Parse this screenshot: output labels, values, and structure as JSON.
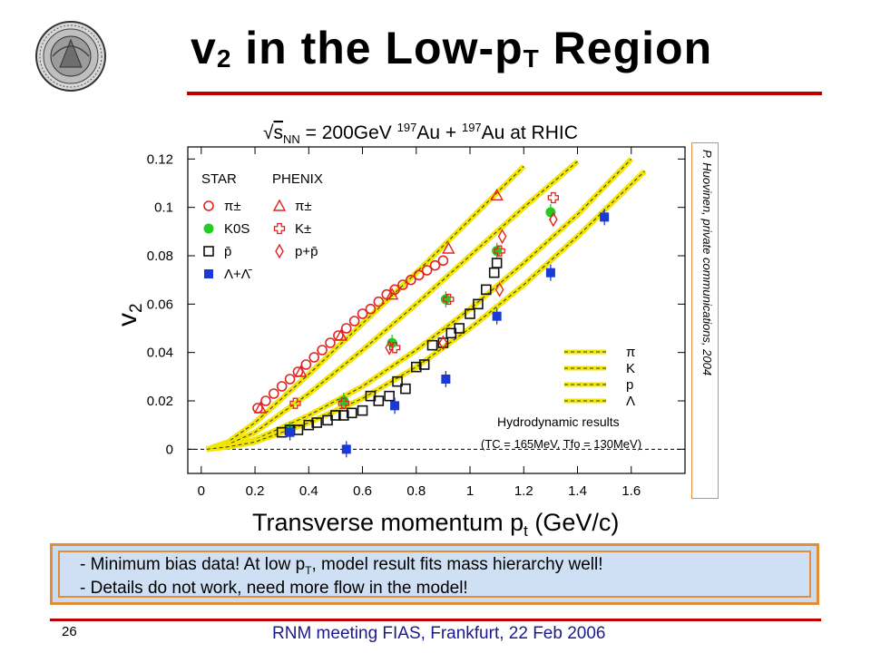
{
  "slide": {
    "title_main": "v",
    "title_sub": "2",
    "title_rest": " in the Low-p",
    "title_sub2": "T",
    "title_end": " Region",
    "page_number": "26",
    "footer": "RNM meeting FIAS, Frankfurt, 22 Feb 2006",
    "credit": "P. Huovinen, private communications, 2004",
    "accent_color": "#c00000",
    "box_border_color": "#e58c36",
    "box_fill_color": "#c9dcf2",
    "notes": {
      "line1_a": "-   Minimum bias data!     At low p",
      "line1_sub": "T",
      "line1_b": ", model result fits mass hierarchy well!",
      "line2": "-   Details do not work, need more flow in the model!"
    }
  },
  "chart_data": {
    "type": "scatter",
    "title": "√sNN = 200GeV 197Au + 197Au at RHIC",
    "title_parts": {
      "sqrt": "√",
      "s": "s",
      "nn": "NN",
      "energy": " = 200GeV ",
      "mass1": "197",
      "au1": "Au + ",
      "mass2": "197",
      "au2": "Au at RHIC"
    },
    "xlabel": "Transverse momentum p",
    "xlabel_sub": "t",
    "xlabel_unit": " (GeV/c)",
    "ylabel": "v",
    "ylabel_sub": "2",
    "xlim": [
      -0.05,
      1.8
    ],
    "ylim": [
      -0.01,
      0.125
    ],
    "xticks": [
      0,
      0.2,
      0.4,
      0.6,
      0.8,
      1,
      1.2,
      1.4,
      1.6
    ],
    "xtick_labels": [
      "0",
      "0.2",
      "0.4",
      "0.6",
      "0.8",
      "1",
      "1.2",
      "1.4",
      "1.6"
    ],
    "yticks": [
      0,
      0.02,
      0.04,
      0.06,
      0.08,
      0.1,
      0.12
    ],
    "ytick_labels": [
      "0",
      "0.02",
      "0.04",
      "0.06",
      "0.08",
      "0.1",
      "0.12"
    ],
    "zero_line": "dashed",
    "legend": {
      "placement": "top-left",
      "col1_header": "STAR",
      "col2_header": "PHENIX",
      "rows": [
        {
          "star": "π±",
          "phenix": "π±"
        },
        {
          "star": "K0S",
          "phenix": "K±"
        },
        {
          "star": "p̄",
          "phenix": "p+p̄"
        },
        {
          "star": "Λ+Λ̄",
          "phenix": ""
        }
      ]
    },
    "hydro_legend": {
      "placement": "bottom-right",
      "labels": [
        "π",
        "K",
        "p",
        "Λ"
      ],
      "caption": "Hydrodynamic results",
      "params": "(TC = 165MeV, Tfo = 130MeV)"
    },
    "series": [
      {
        "name": "STAR π±",
        "marker": "circle-open",
        "color": "#e52222",
        "x": [
          0.21,
          0.24,
          0.27,
          0.3,
          0.33,
          0.36,
          0.39,
          0.42,
          0.45,
          0.48,
          0.51,
          0.54,
          0.57,
          0.6,
          0.63,
          0.66,
          0.69,
          0.72,
          0.75,
          0.78,
          0.81,
          0.84,
          0.87,
          0.9
        ],
        "y": [
          0.017,
          0.02,
          0.023,
          0.026,
          0.029,
          0.032,
          0.035,
          0.038,
          0.041,
          0.044,
          0.047,
          0.05,
          0.053,
          0.056,
          0.058,
          0.061,
          0.064,
          0.066,
          0.068,
          0.07,
          0.072,
          0.074,
          0.076,
          0.078
        ]
      },
      {
        "name": "PHENIX π±",
        "marker": "triangle-open",
        "color": "#e52222",
        "x": [
          0.22,
          0.37,
          0.52,
          0.71,
          0.92,
          1.1
        ],
        "y": [
          0.017,
          0.032,
          0.047,
          0.064,
          0.083,
          0.105
        ]
      },
      {
        "name": "STAR K0S",
        "marker": "circle-filled",
        "color": "#22cc22",
        "x": [
          0.33,
          0.53,
          0.71,
          0.91,
          1.1,
          1.3
        ],
        "y": [
          0.008,
          0.02,
          0.044,
          0.062,
          0.082,
          0.098
        ]
      },
      {
        "name": "PHENIX K±",
        "marker": "cross-open",
        "color": "#e52222",
        "x": [
          0.35,
          0.53,
          0.72,
          0.92,
          1.11,
          1.31
        ],
        "y": [
          0.019,
          0.019,
          0.042,
          0.062,
          0.082,
          0.104
        ]
      },
      {
        "name": "STAR p̄",
        "marker": "square-open",
        "color": "#111111",
        "x": [
          0.3,
          0.33,
          0.36,
          0.4,
          0.43,
          0.47,
          0.5,
          0.53,
          0.56,
          0.6,
          0.63,
          0.66,
          0.7,
          0.73,
          0.76,
          0.8,
          0.83,
          0.86,
          0.9,
          0.93,
          0.96,
          1.0,
          1.03,
          1.06,
          1.09,
          1.1
        ],
        "y": [
          0.007,
          0.008,
          0.008,
          0.01,
          0.011,
          0.012,
          0.014,
          0.014,
          0.015,
          0.016,
          0.022,
          0.02,
          0.022,
          0.028,
          0.025,
          0.034,
          0.035,
          0.043,
          0.044,
          0.048,
          0.05,
          0.056,
          0.06,
          0.066,
          0.073,
          0.077
        ]
      },
      {
        "name": "PHENIX p+p̄",
        "marker": "diamond-open",
        "color": "#e52222",
        "x": [
          0.7,
          0.9,
          1.11,
          1.31,
          1.12
        ],
        "y": [
          0.042,
          0.044,
          0.066,
          0.095,
          0.088
        ]
      },
      {
        "name": "STAR Λ+Λ̄",
        "marker": "square-filled",
        "color": "#1a3ad8",
        "x": [
          0.33,
          0.54,
          0.72,
          0.91,
          1.1,
          1.3,
          1.5
        ],
        "y": [
          0.007,
          0.0,
          0.018,
          0.029,
          0.055,
          0.073,
          0.096
        ]
      }
    ],
    "hydro_curves": [
      {
        "name": "π",
        "x": [
          0.02,
          0.1,
          0.2,
          0.3,
          0.4,
          0.6,
          0.8,
          1.0,
          1.2
        ],
        "y": [
          0.0,
          0.003,
          0.011,
          0.021,
          0.031,
          0.052,
          0.073,
          0.095,
          0.117
        ]
      },
      {
        "name": "K",
        "x": [
          0.02,
          0.1,
          0.2,
          0.3,
          0.4,
          0.6,
          0.8,
          1.0,
          1.2,
          1.4
        ],
        "y": [
          0.0,
          0.002,
          0.007,
          0.015,
          0.023,
          0.041,
          0.06,
          0.08,
          0.1,
          0.119
        ]
      },
      {
        "name": "p",
        "x": [
          0.02,
          0.1,
          0.2,
          0.3,
          0.4,
          0.6,
          0.8,
          1.0,
          1.2,
          1.4,
          1.6
        ],
        "y": [
          0.0,
          0.001,
          0.004,
          0.009,
          0.014,
          0.026,
          0.041,
          0.058,
          0.077,
          0.097,
          0.12
        ]
      },
      {
        "name": "Λ",
        "x": [
          0.02,
          0.1,
          0.2,
          0.3,
          0.4,
          0.6,
          0.8,
          1.0,
          1.2,
          1.4,
          1.65
        ],
        "y": [
          0.0,
          0.001,
          0.003,
          0.007,
          0.011,
          0.021,
          0.034,
          0.05,
          0.068,
          0.088,
          0.115
        ]
      }
    ]
  }
}
